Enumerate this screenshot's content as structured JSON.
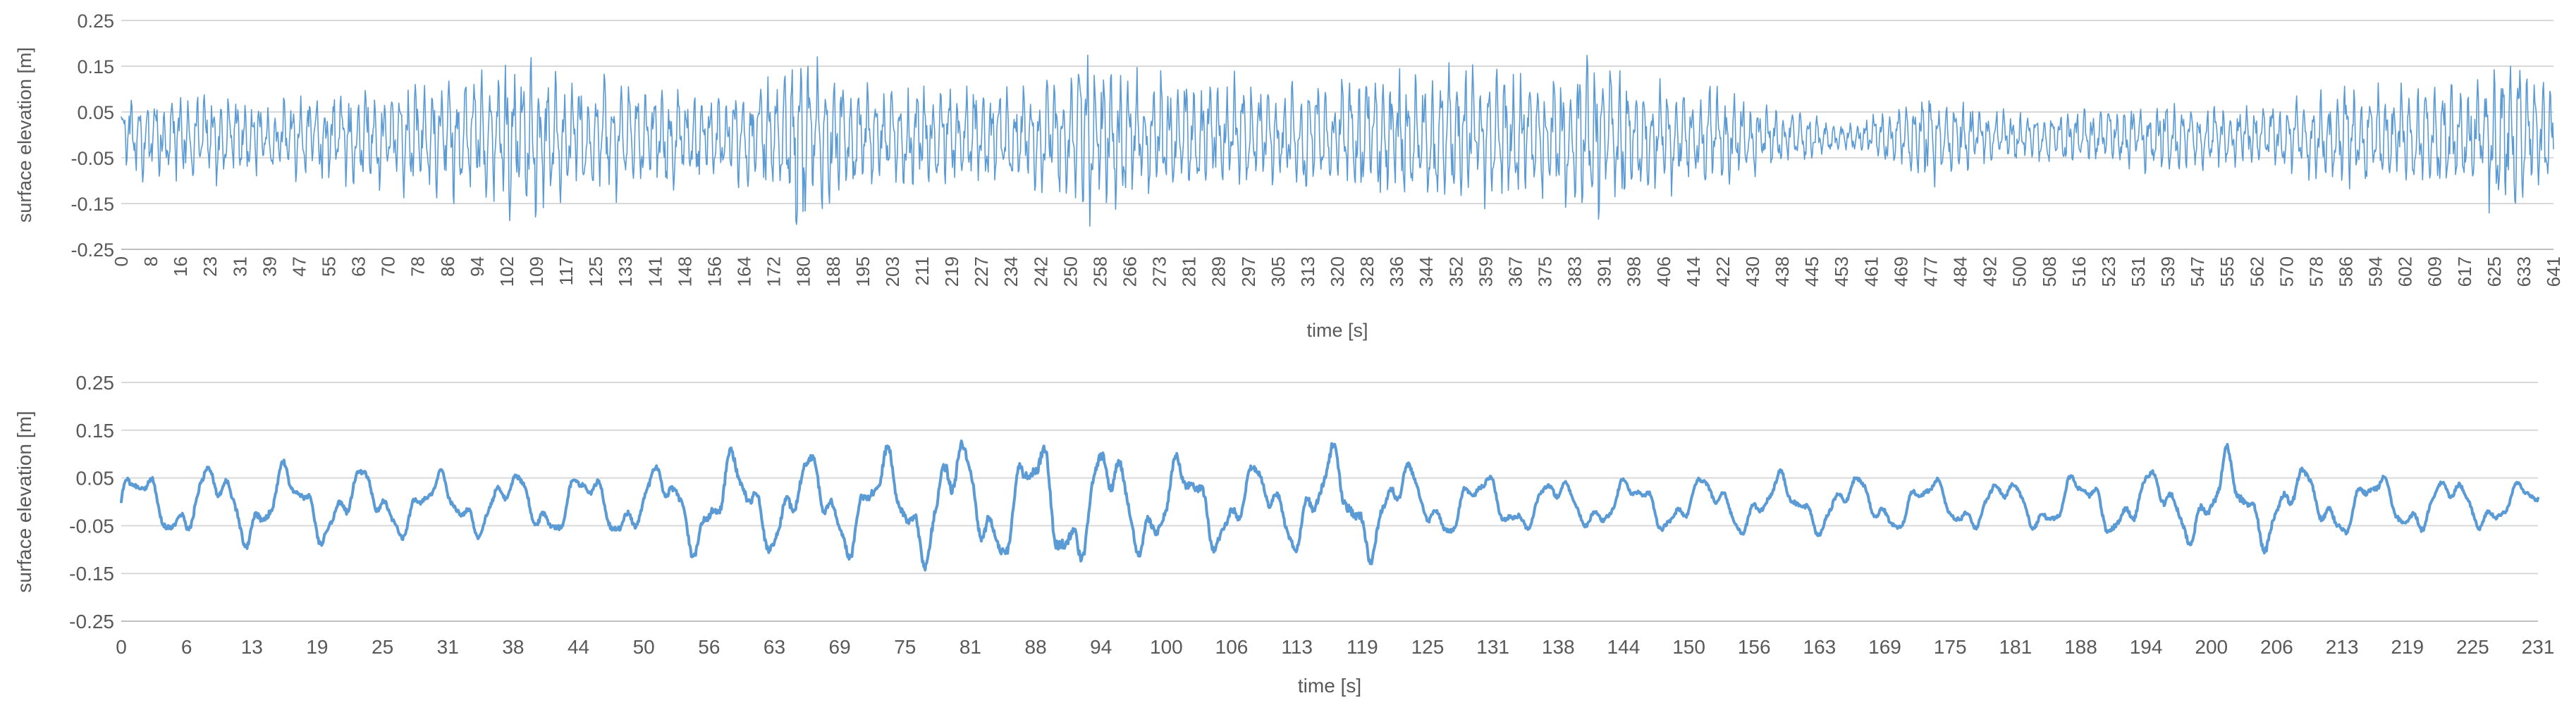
{
  "chart_data": [
    {
      "type": "line",
      "title": "",
      "xlabel": "time [s]",
      "ylabel": "surface elevation [m]",
      "ylim": [
        -0.25,
        0.25
      ],
      "xlim": [
        0,
        645
      ],
      "y_ticks": [
        "0.25",
        "0.15",
        "0.05",
        "-0.05",
        "-0.15",
        "-0.25"
      ],
      "x_ticks": [
        "0",
        "8",
        "16",
        "23",
        "31",
        "39",
        "47",
        "55",
        "63",
        "70",
        "78",
        "86",
        "94",
        "102",
        "109",
        "117",
        "125",
        "133",
        "141",
        "148",
        "156",
        "164",
        "172",
        "180",
        "188",
        "195",
        "203",
        "211",
        "219",
        "227",
        "234",
        "242",
        "250",
        "258",
        "266",
        "273",
        "281",
        "289",
        "297",
        "305",
        "313",
        "320",
        "328",
        "336",
        "344",
        "352",
        "359",
        "367",
        "375",
        "383",
        "391",
        "398",
        "406",
        "414",
        "422",
        "430",
        "438",
        "445",
        "453",
        "461",
        "469",
        "477",
        "484",
        "492",
        "500",
        "508",
        "516",
        "523",
        "531",
        "539",
        "547",
        "555",
        "562",
        "570",
        "578",
        "586",
        "594",
        "602",
        "609",
        "617",
        "625",
        "633",
        "641"
      ],
      "grid": "horizontal",
      "legend": "none",
      "series_color": "#5b9bd5",
      "series": [
        {
          "x": [
            0,
            20,
            40,
            60,
            80,
            100,
            103,
            120,
            140,
            160,
            175,
            178,
            181,
            184,
            200,
            220,
            240,
            252,
            255,
            270,
            290,
            310,
            330,
            350,
            357,
            365,
            380,
            392,
            400,
            420,
            440,
            460,
            480,
            500,
            520,
            540,
            560,
            580,
            590,
            600,
            620,
            632,
            635,
            645
          ],
          "envelope": [
            0.08,
            0.1,
            0.08,
            0.1,
            0.11,
            0.15,
            0.18,
            0.12,
            0.11,
            0.1,
            0.14,
            0.2,
            0.22,
            0.15,
            0.11,
            0.1,
            0.12,
            0.14,
            0.2,
            0.13,
            0.12,
            0.11,
            0.13,
            0.15,
            0.17,
            0.14,
            0.13,
            0.18,
            0.13,
            0.11,
            0.06,
            0.03,
            0.1,
            0.05,
            0.06,
            0.08,
            0.06,
            0.08,
            0.11,
            0.1,
            0.12,
            0.16,
            0.18,
            0.1
          ]
        }
      ]
    },
    {
      "type": "line",
      "title": "",
      "xlabel": "time [s]",
      "ylabel": "surface elevation [m]",
      "ylim": [
        -0.25,
        0.25
      ],
      "xlim": [
        0,
        232
      ],
      "y_ticks": [
        "0.25",
        "0.15",
        "0.05",
        "-0.05",
        "-0.15",
        "-0.25"
      ],
      "x_ticks": [
        "0",
        "6",
        "13",
        "19",
        "25",
        "31",
        "38",
        "44",
        "50",
        "56",
        "63",
        "69",
        "75",
        "81",
        "88",
        "94",
        "100",
        "106",
        "113",
        "119",
        "125",
        "131",
        "138",
        "144",
        "150",
        "156",
        "163",
        "169",
        "175",
        "181",
        "188",
        "194",
        "200",
        "206",
        "213",
        "219",
        "225",
        "231"
      ],
      "grid": "horizontal",
      "legend": "none",
      "series_color": "#5b9bd5",
      "series": [
        {
          "x": [
            0,
            5,
            10,
            20,
            30,
            40,
            50,
            57,
            60,
            70,
            76,
            79,
            82,
            86,
            90,
            92,
            95,
            100,
            105,
            110,
            118,
            125,
            140,
            160,
            180,
            195,
            200,
            202,
            210,
            220,
            232
          ],
          "envelope": [
            0.08,
            0.08,
            0.1,
            0.09,
            0.07,
            0.08,
            0.08,
            0.13,
            0.11,
            0.12,
            0.13,
            0.18,
            0.14,
            0.15,
            0.17,
            0.16,
            0.14,
            0.12,
            0.11,
            0.09,
            0.14,
            0.08,
            0.06,
            0.07,
            0.06,
            0.08,
            0.09,
            0.12,
            0.08,
            0.07,
            0.05
          ]
        }
      ]
    }
  ]
}
